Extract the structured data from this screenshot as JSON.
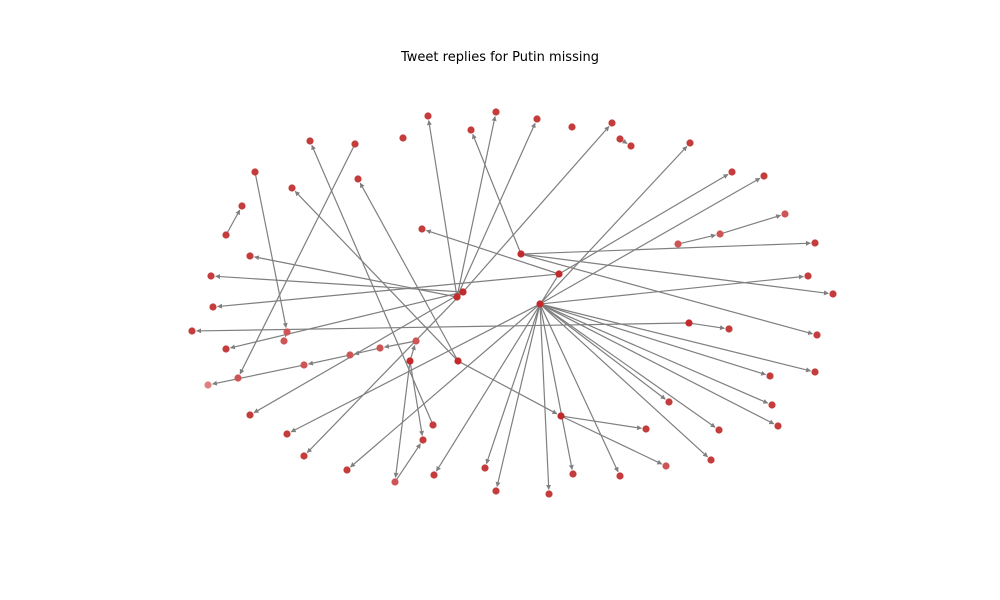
{
  "title": "Tweet replies for Putin missing",
  "colors": {
    "edge": "#7f7f7f",
    "node_levels": [
      "#c22a2c",
      "#c43c3c",
      "#cd5555",
      "#de8080"
    ]
  },
  "graph": {
    "nodes": [
      {
        "id": "a",
        "level": 0
      },
      {
        "id": "b",
        "level": 0
      },
      {
        "id": "c",
        "level": 0
      },
      {
        "id": "d",
        "level": 0
      },
      {
        "id": "e",
        "level": 0
      },
      {
        "id": "f",
        "level": 0
      },
      {
        "id": "g",
        "level": 0
      },
      {
        "id": "h",
        "level": 1
      },
      {
        "id": "i",
        "level": 1
      },
      {
        "id": "j",
        "level": 1
      },
      {
        "id": "k",
        "level": 1
      },
      {
        "id": "l",
        "level": 0
      },
      {
        "id": "m",
        "level": 1
      },
      {
        "id": "n",
        "level": 1
      },
      {
        "id": "o",
        "level": 1
      },
      {
        "id": "p",
        "level": 1
      },
      {
        "id": "q",
        "level": 1
      },
      {
        "id": "r",
        "level": 1
      },
      {
        "id": "s",
        "level": 1
      },
      {
        "id": "t",
        "level": 1
      },
      {
        "id": "u",
        "level": 1
      },
      {
        "id": "v",
        "level": 1
      },
      {
        "id": "w",
        "level": 1
      },
      {
        "id": "x",
        "level": 1
      },
      {
        "id": "y",
        "level": 1
      },
      {
        "id": "z",
        "level": 1
      },
      {
        "id": "aa",
        "level": 1
      },
      {
        "id": "ab",
        "level": 1
      },
      {
        "id": "ac",
        "level": 1
      },
      {
        "id": "ad",
        "level": 1
      },
      {
        "id": "ae",
        "level": 1
      },
      {
        "id": "af",
        "level": 1
      },
      {
        "id": "ag",
        "level": 1
      },
      {
        "id": "ah",
        "level": 1
      },
      {
        "id": "ai",
        "level": 1
      },
      {
        "id": "aj",
        "level": 1
      },
      {
        "id": "ak",
        "level": 1
      },
      {
        "id": "al",
        "level": 1
      },
      {
        "id": "am",
        "level": 1
      },
      {
        "id": "an",
        "level": 1
      },
      {
        "id": "ao",
        "level": 1
      },
      {
        "id": "ap",
        "level": 1
      },
      {
        "id": "aq",
        "level": 1
      },
      {
        "id": "ar",
        "level": 1
      },
      {
        "id": "as",
        "level": 1
      },
      {
        "id": "at",
        "level": 1
      },
      {
        "id": "au",
        "level": 1
      },
      {
        "id": "av",
        "level": 1
      },
      {
        "id": "aw",
        "level": 1
      },
      {
        "id": "ax",
        "level": 1
      },
      {
        "id": "ay",
        "level": 1
      },
      {
        "id": "az",
        "level": 1
      },
      {
        "id": "ba",
        "level": 1
      },
      {
        "id": "bb",
        "level": 1
      },
      {
        "id": "bc",
        "level": 1
      },
      {
        "id": "bd",
        "level": 1
      },
      {
        "id": "be",
        "level": 1
      },
      {
        "id": "bf",
        "level": 1
      },
      {
        "id": "bg",
        "level": 1
      },
      {
        "id": "bh",
        "level": 1
      },
      {
        "id": "bi",
        "level": 1
      },
      {
        "id": "bj",
        "level": 1
      },
      {
        "id": "bk",
        "level": 1
      },
      {
        "id": "bl",
        "level": 1
      },
      {
        "id": "bm",
        "level": 1
      },
      {
        "id": "bn",
        "level": 2
      },
      {
        "id": "bo",
        "level": 2
      },
      {
        "id": "bp",
        "level": 2
      },
      {
        "id": "bq",
        "level": 2
      },
      {
        "id": "br",
        "level": 2
      },
      {
        "id": "bs",
        "level": 2
      },
      {
        "id": "bt",
        "level": 2
      },
      {
        "id": "bu",
        "level": 2
      },
      {
        "id": "bv",
        "level": 3
      },
      {
        "id": "bw",
        "level": 2
      },
      {
        "id": "bx",
        "level": 2
      }
    ],
    "edges": [
      [
        "a",
        "ah"
      ],
      [
        "a",
        "ai"
      ],
      [
        "a",
        "aj"
      ],
      [
        "a",
        "ak"
      ],
      [
        "a",
        "ac"
      ],
      [
        "a",
        "av"
      ],
      [
        "a",
        "at"
      ],
      [
        "a",
        "al"
      ],
      [
        "a",
        "am"
      ],
      [
        "a",
        "an"
      ],
      [
        "a",
        "ao"
      ],
      [
        "a",
        "aa"
      ],
      [
        "a",
        "ar"
      ],
      [
        "a",
        "bl"
      ],
      [
        "a",
        "ap"
      ],
      [
        "a",
        "aq"
      ],
      [
        "a",
        "ae"
      ],
      [
        "b",
        "bk"
      ],
      [
        "b",
        "as"
      ],
      [
        "b",
        "ab"
      ],
      [
        "b",
        "az"
      ],
      [
        "c",
        "aw"
      ],
      [
        "c",
        "ax"
      ],
      [
        "c",
        "ay"
      ],
      [
        "c",
        "au"
      ],
      [
        "c",
        "w"
      ],
      [
        "e",
        "af"
      ],
      [
        "e",
        "ag"
      ],
      [
        "e",
        "ad"
      ],
      [
        "e",
        "k"
      ],
      [
        "f",
        "bi"
      ],
      [
        "f",
        "bj"
      ],
      [
        "g",
        "h"
      ],
      [
        "g",
        "i"
      ],
      [
        "g",
        "j"
      ],
      [
        "g",
        "bb"
      ],
      [
        "l",
        "bm"
      ],
      [
        "l",
        "ba"
      ],
      [
        "d",
        "bq"
      ],
      [
        "bq",
        "br"
      ],
      [
        "br",
        "bs"
      ],
      [
        "bs",
        "bt"
      ],
      [
        "bt",
        "bv"
      ],
      [
        "be",
        "bx"
      ],
      [
        "bx",
        "bw"
      ],
      [
        "bc",
        "bd"
      ],
      [
        "m",
        "bf"
      ],
      [
        "bg",
        "bu"
      ],
      [
        "n",
        "s"
      ]
    ]
  }
}
